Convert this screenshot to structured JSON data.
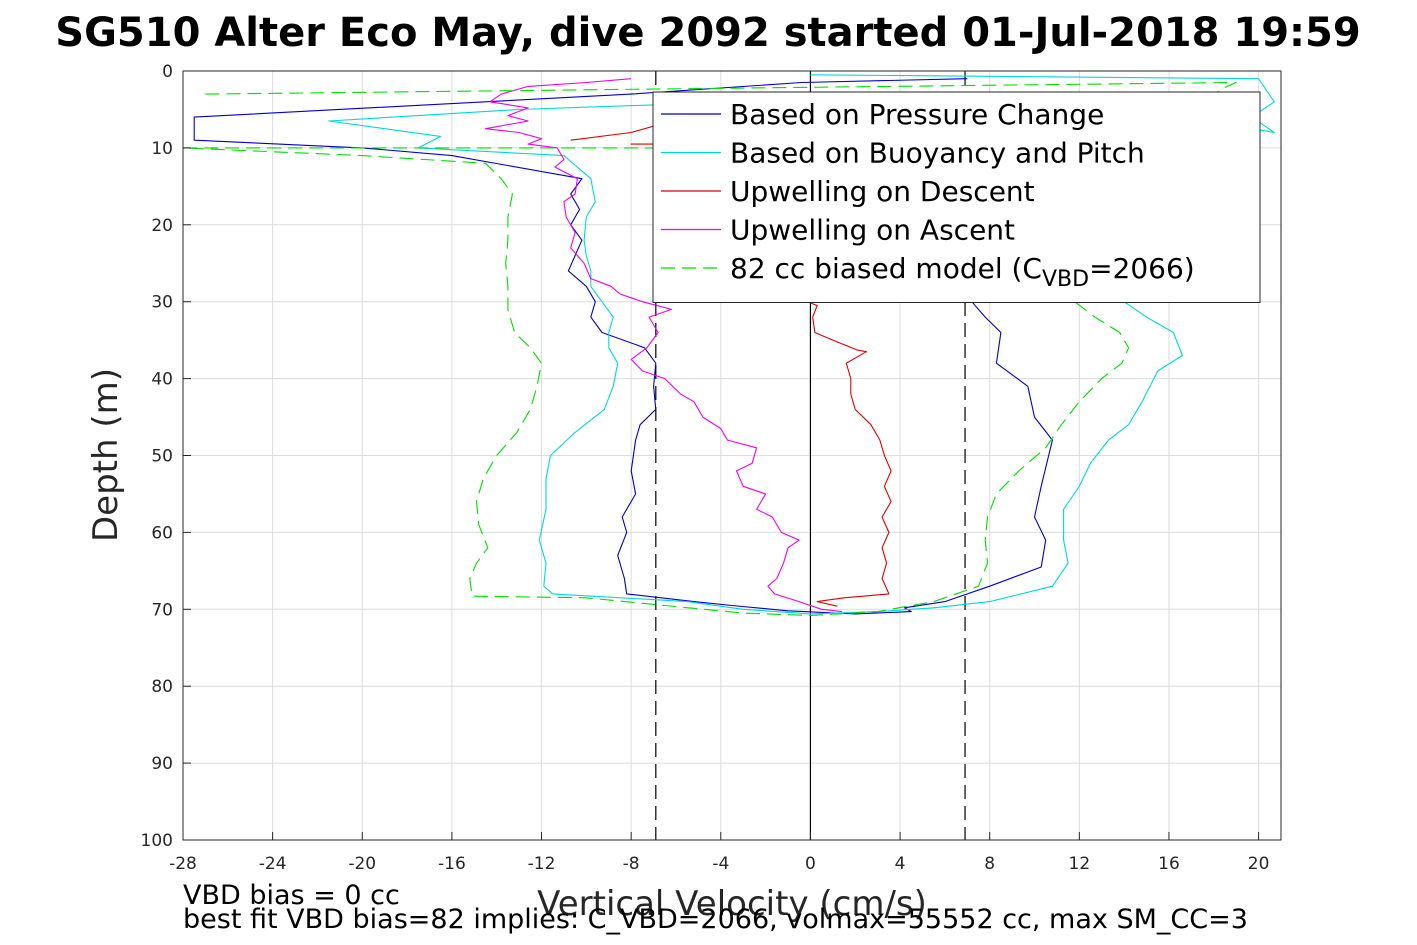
{
  "chart_data": {
    "type": "line",
    "title": "SG510 Alter Eco May, dive 2092 started 01-Jul-2018 19:59",
    "xlabel": "Vertical Velocity (cm/s)",
    "ylabel": "Depth (m)",
    "xlim": [
      -28,
      21
    ],
    "ylim": [
      0,
      100
    ],
    "y_reversed": true,
    "xticks": [
      -28,
      -24,
      -20,
      -16,
      -12,
      -8,
      -4,
      0,
      4,
      8,
      12,
      16,
      20
    ],
    "yticks": [
      0,
      10,
      20,
      30,
      40,
      50,
      60,
      70,
      80,
      90,
      100
    ],
    "grid": true,
    "legend_position": "top-right",
    "reference_lines": [
      {
        "x": -6.9,
        "style": "dashed",
        "color": "#000000"
      },
      {
        "x": 0,
        "style": "solid",
        "color": "#000000"
      },
      {
        "x": 6.9,
        "style": "dashed",
        "color": "#000000"
      }
    ],
    "series": [
      {
        "name": "Based on Pressure Change",
        "color": "#0000cc",
        "dash": "solid",
        "points": [
          [
            7.0,
            1
          ],
          [
            -0.4,
            1.5
          ],
          [
            -8,
            3
          ],
          [
            -27.5,
            6
          ],
          [
            -27.5,
            9
          ],
          [
            -20,
            10
          ],
          [
            -16,
            11
          ],
          [
            -10.2,
            14
          ],
          [
            -10.7,
            16
          ],
          [
            -10.3,
            18
          ],
          [
            -10.7,
            20
          ],
          [
            -10.2,
            22
          ],
          [
            -10.5,
            24
          ],
          [
            -10.8,
            26
          ],
          [
            -10,
            28
          ],
          [
            -9.6,
            30
          ],
          [
            -9.8,
            32
          ],
          [
            -9.3,
            34
          ],
          [
            -7.4,
            36
          ],
          [
            -6.9,
            38
          ],
          [
            -7,
            41
          ],
          [
            -6.9,
            44
          ],
          [
            -7.6,
            46
          ],
          [
            -7.8,
            48
          ],
          [
            -8,
            52
          ],
          [
            -7.8,
            55
          ],
          [
            -8.4,
            58
          ],
          [
            -8.2,
            60
          ],
          [
            -8.6,
            63
          ],
          [
            -8.3,
            66
          ],
          [
            -8.2,
            68
          ],
          [
            -5.2,
            69
          ],
          [
            -3.5,
            69.5
          ],
          [
            -1,
            70.2
          ],
          [
            2,
            70.6
          ],
          [
            4.5,
            70.3
          ],
          [
            4.2,
            69.8
          ],
          [
            6,
            69
          ],
          [
            8,
            67
          ],
          [
            10.3,
            64.5
          ],
          [
            10.5,
            61
          ],
          [
            10,
            58
          ],
          [
            10.3,
            54
          ],
          [
            10.8,
            48
          ],
          [
            10,
            45
          ],
          [
            9.7,
            41
          ],
          [
            8.3,
            38
          ],
          [
            8.5,
            34
          ],
          [
            7.8,
            32
          ],
          [
            7.2,
            30
          ]
        ]
      },
      {
        "name": "Based on Buoyancy and Pitch",
        "color": "#00d8d8",
        "dash": "solid",
        "points": [
          [
            0,
            0.5
          ],
          [
            20,
            1
          ],
          [
            20.7,
            4
          ],
          [
            19.7,
            6
          ],
          [
            20.7,
            8
          ],
          [
            12,
            3.5
          ],
          [
            -3,
            4
          ],
          [
            -13,
            5
          ],
          [
            -21.5,
            6.5
          ],
          [
            -16.5,
            8.5
          ],
          [
            -17.5,
            10
          ],
          [
            -11,
            11
          ],
          [
            -9.8,
            14
          ],
          [
            -9.6,
            17
          ],
          [
            -10,
            19
          ],
          [
            -10.1,
            22
          ],
          [
            -10,
            24
          ],
          [
            -9.8,
            26
          ],
          [
            -9.8,
            28
          ],
          [
            -9.3,
            30
          ],
          [
            -8.8,
            32
          ],
          [
            -9,
            34
          ],
          [
            -9,
            36
          ],
          [
            -8.6,
            38
          ],
          [
            -8.8,
            41
          ],
          [
            -9.2,
            44
          ],
          [
            -10.5,
            47
          ],
          [
            -11.6,
            50
          ],
          [
            -11.8,
            53
          ],
          [
            -11.8,
            57
          ],
          [
            -12.1,
            61
          ],
          [
            -11.8,
            64
          ],
          [
            -11.9,
            67
          ],
          [
            -11.5,
            68
          ],
          [
            -5.5,
            69
          ],
          [
            -3,
            70
          ],
          [
            0,
            70.6
          ],
          [
            3,
            70.3
          ],
          [
            5.5,
            69.8
          ],
          [
            8,
            69
          ],
          [
            10.8,
            67
          ],
          [
            11.5,
            64
          ],
          [
            11.3,
            61
          ],
          [
            11.3,
            57
          ],
          [
            12,
            54
          ],
          [
            12.5,
            51
          ],
          [
            13.3,
            48
          ],
          [
            14.2,
            46
          ],
          [
            14.8,
            43
          ],
          [
            15.5,
            39
          ],
          [
            16.6,
            37
          ],
          [
            16.2,
            34
          ],
          [
            15,
            32
          ],
          [
            14,
            30
          ]
        ]
      },
      {
        "name": "Upwelling on Descent",
        "color": "#dd0000",
        "dash": "solid",
        "points": [
          [
            -10.7,
            9
          ],
          [
            -8,
            8
          ],
          [
            -6.2,
            6.5
          ],
          [
            -6.1,
            9.5
          ],
          [
            -8,
            9.5
          ],
          [
            -6.5,
            9.5
          ],
          [
            -0.6,
            29.5
          ],
          [
            0.3,
            30.5
          ],
          [
            0.1,
            32
          ],
          [
            0.2,
            34
          ],
          [
            1,
            35
          ],
          [
            2.1,
            36.3
          ],
          [
            2.5,
            36.5
          ],
          [
            1.6,
            38
          ],
          [
            1.8,
            40
          ],
          [
            1.8,
            42
          ],
          [
            2,
            44
          ],
          [
            2.7,
            46
          ],
          [
            3.1,
            48
          ],
          [
            3.3,
            50
          ],
          [
            3.6,
            52
          ],
          [
            3.3,
            54
          ],
          [
            3.6,
            56
          ],
          [
            3.2,
            58
          ],
          [
            3.5,
            60
          ],
          [
            3.2,
            62
          ],
          [
            3.4,
            64
          ],
          [
            3.2,
            66
          ],
          [
            3.5,
            68
          ],
          [
            1.5,
            68.5
          ],
          [
            0.3,
            69
          ],
          [
            1.2,
            69.6
          ]
        ]
      },
      {
        "name": "Upwelling on Ascent",
        "color": "#ee00ee",
        "dash": "solid",
        "points": [
          [
            -8,
            1
          ],
          [
            -10,
            1.5
          ],
          [
            -12.6,
            2
          ],
          [
            -13.8,
            3
          ],
          [
            -14.3,
            4
          ],
          [
            -12.6,
            4.8
          ],
          [
            -13.5,
            5.8
          ],
          [
            -12.6,
            6.5
          ],
          [
            -14.5,
            7.5
          ],
          [
            -13,
            8
          ],
          [
            -12,
            8.8
          ],
          [
            -12.6,
            9.5
          ],
          [
            -11.3,
            10
          ],
          [
            -11,
            11.5
          ],
          [
            -11.4,
            12.5
          ],
          [
            -10.4,
            14
          ],
          [
            -10.5,
            16
          ],
          [
            -11,
            17
          ],
          [
            -10.9,
            19
          ],
          [
            -10.5,
            21
          ],
          [
            -10.7,
            23
          ],
          [
            -10.1,
            25
          ],
          [
            -9.8,
            27
          ],
          [
            -8.9,
            28
          ],
          [
            -8.5,
            29
          ],
          [
            -7.5,
            30
          ],
          [
            -6.2,
            31
          ],
          [
            -7.2,
            32
          ],
          [
            -6.8,
            34
          ],
          [
            -7.3,
            36
          ],
          [
            -8,
            37.5
          ],
          [
            -7.5,
            39
          ],
          [
            -6.5,
            40
          ],
          [
            -5.8,
            42
          ],
          [
            -5.2,
            43
          ],
          [
            -4.8,
            45
          ],
          [
            -4,
            46.5
          ],
          [
            -3.7,
            48
          ],
          [
            -2.4,
            49
          ],
          [
            -2.6,
            51
          ],
          [
            -3.3,
            52
          ],
          [
            -3,
            54
          ],
          [
            -2,
            55
          ],
          [
            -2.4,
            57
          ],
          [
            -1.7,
            58
          ],
          [
            -1.3,
            60
          ],
          [
            -0.5,
            61
          ],
          [
            -1,
            62
          ],
          [
            -1.2,
            64
          ],
          [
            -1.5,
            66
          ],
          [
            -1.9,
            67
          ],
          [
            -1.6,
            68
          ],
          [
            -0.5,
            69
          ],
          [
            0.5,
            70
          ],
          [
            1.4,
            70.3
          ]
        ]
      },
      {
        "name": "82 cc biased model (C_VBD=2066)",
        "color": "#00dd00",
        "dash": "dashed",
        "points": [
          [
            -27,
            3
          ],
          [
            19,
            1.5
          ],
          [
            18.6,
            2
          ],
          [
            18,
            3
          ],
          [
            17.8,
            4
          ],
          [
            18,
            7
          ],
          [
            18.5,
            10
          ],
          [
            -28,
            10
          ],
          [
            -20,
            11
          ],
          [
            -14.5,
            12
          ],
          [
            -13.8,
            14
          ],
          [
            -13.3,
            16
          ],
          [
            -13.5,
            19
          ],
          [
            -13.5,
            22
          ],
          [
            -13.6,
            25
          ],
          [
            -13.5,
            28
          ],
          [
            -13.5,
            31
          ],
          [
            -13.2,
            34
          ],
          [
            -12.5,
            36
          ],
          [
            -12,
            38
          ],
          [
            -12.2,
            41
          ],
          [
            -12.5,
            44
          ],
          [
            -13.1,
            47
          ],
          [
            -14,
            50
          ],
          [
            -14.6,
            53
          ],
          [
            -14.9,
            56
          ],
          [
            -14.8,
            59
          ],
          [
            -14.4,
            62
          ],
          [
            -14.9,
            64
          ],
          [
            -15.2,
            66
          ],
          [
            -15.1,
            68.3
          ],
          [
            -10,
            68.5
          ],
          [
            -6.5,
            69.5
          ],
          [
            -3,
            70.5
          ],
          [
            0,
            70.8
          ],
          [
            3,
            70.3
          ],
          [
            5.5,
            69
          ],
          [
            7.5,
            67
          ],
          [
            7.9,
            64
          ],
          [
            7.8,
            61
          ],
          [
            7.9,
            58
          ],
          [
            8.3,
            55
          ],
          [
            9.3,
            52
          ],
          [
            10.5,
            49
          ],
          [
            11.2,
            46
          ],
          [
            12,
            43
          ],
          [
            13,
            40
          ],
          [
            13.9,
            38
          ],
          [
            14.2,
            36
          ],
          [
            13.8,
            34
          ],
          [
            12.7,
            32
          ],
          [
            11.8,
            30
          ]
        ]
      }
    ]
  },
  "footnotes": {
    "line1": "VBD bias = 0 cc",
    "line2": "best fit VBD bias=82 implies: C_VBD=2066, volmax=55552 cc, max SM_CC=3"
  }
}
